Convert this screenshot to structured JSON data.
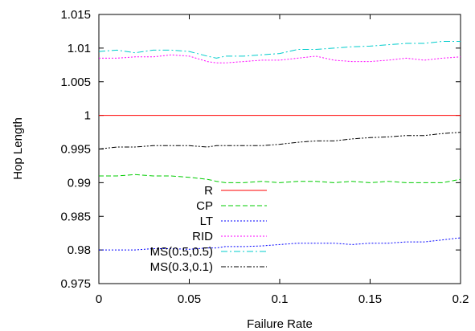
{
  "chart_data": {
    "type": "line",
    "title": "",
    "xlabel": "Failure Rate",
    "ylabel": "Hop Length",
    "xlim": [
      0,
      0.2
    ],
    "ylim": [
      0.975,
      1.015
    ],
    "grid": false,
    "legend_position": "bottom-left",
    "x_ticks": [
      "0",
      "0.05",
      "0.1",
      "0.15",
      "0.2"
    ],
    "y_ticks": [
      "0.975",
      "0.98",
      "0.985",
      "0.99",
      "0.995",
      "1",
      "1.005",
      "1.01",
      "1.015"
    ],
    "x": [
      0,
      0.01,
      0.02,
      0.03,
      0.04,
      0.05,
      0.06,
      0.065,
      0.07,
      0.08,
      0.09,
      0.1,
      0.11,
      0.12,
      0.13,
      0.14,
      0.15,
      0.16,
      0.17,
      0.18,
      0.19,
      0.2
    ],
    "series": [
      {
        "name": "R",
        "color": "#ff0000",
        "dash": "solid",
        "values": [
          1.0,
          1.0,
          1.0,
          1.0,
          1.0,
          1.0,
          1.0,
          1.0,
          1.0,
          1.0,
          1.0,
          1.0,
          1.0,
          1.0,
          1.0,
          1.0,
          1.0,
          1.0,
          1.0,
          1.0,
          1.0,
          1.0
        ]
      },
      {
        "name": "CP",
        "color": "#00cc00",
        "dash": "dashed",
        "values": [
          0.991,
          0.991,
          0.9912,
          0.991,
          0.991,
          0.9908,
          0.9905,
          0.9902,
          0.99,
          0.99,
          0.9902,
          0.99,
          0.9902,
          0.9902,
          0.99,
          0.9902,
          0.99,
          0.9902,
          0.99,
          0.99,
          0.99,
          0.9905
        ]
      },
      {
        "name": "LT",
        "color": "#0000ff",
        "dash": "dotted",
        "values": [
          0.98,
          0.98,
          0.98,
          0.9802,
          0.9802,
          0.9801,
          0.9803,
          0.9803,
          0.9805,
          0.9805,
          0.9806,
          0.9808,
          0.981,
          0.981,
          0.981,
          0.9808,
          0.981,
          0.981,
          0.9812,
          0.9812,
          0.9815,
          0.9818
        ]
      },
      {
        "name": "RID",
        "color": "#ff00ff",
        "dash": "dotted",
        "values": [
          1.0085,
          1.0085,
          1.0087,
          1.0087,
          1.009,
          1.0088,
          1.008,
          1.0078,
          1.0078,
          1.008,
          1.0082,
          1.0082,
          1.0085,
          1.0088,
          1.0082,
          1.008,
          1.008,
          1.0082,
          1.0085,
          1.0082,
          1.0085,
          1.0087
        ]
      },
      {
        "name": "MS(0.5,0.5)",
        "color": "#00cccc",
        "dash": "dashdot",
        "values": [
          1.0095,
          1.0097,
          1.0093,
          1.0097,
          1.0097,
          1.0095,
          1.0088,
          1.0085,
          1.0088,
          1.0088,
          1.009,
          1.0092,
          1.0098,
          1.0098,
          1.01,
          1.0102,
          1.0103,
          1.0105,
          1.0107,
          1.0107,
          1.011,
          1.011
        ]
      },
      {
        "name": "MS(0.3,0.1)",
        "color": "#000000",
        "dash": "dashdotdot",
        "values": [
          0.995,
          0.9953,
          0.9953,
          0.9955,
          0.9955,
          0.9955,
          0.9953,
          0.9955,
          0.9955,
          0.9955,
          0.9955,
          0.9957,
          0.996,
          0.9962,
          0.9962,
          0.9965,
          0.9967,
          0.9968,
          0.997,
          0.997,
          0.9973,
          0.9975
        ]
      }
    ]
  }
}
